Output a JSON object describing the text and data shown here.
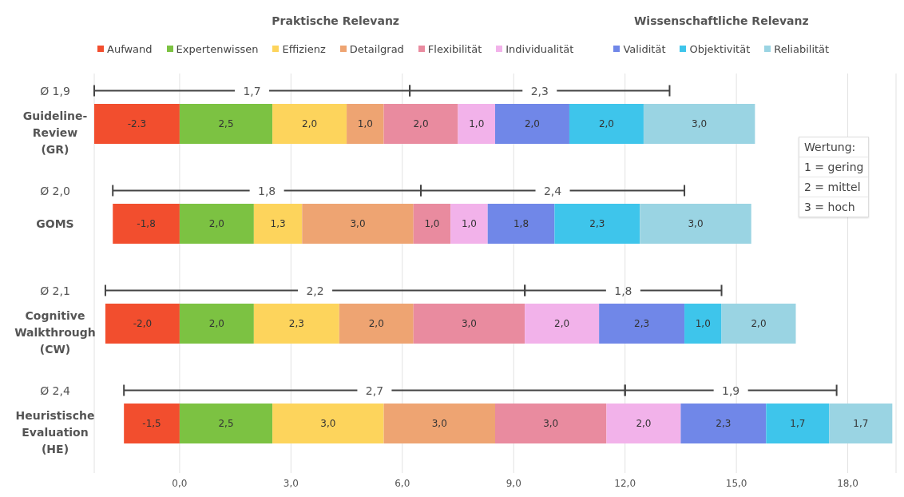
{
  "chart_data": {
    "type": "bar",
    "orientation": "horizontal",
    "stacked": true,
    "categories": [
      "Guideline-Review (GR)",
      "GOMS",
      "Cognitive Walkthrough (CW)",
      "Heuristische Evaluation (HE)"
    ],
    "series": [
      {
        "name": "Aufwand",
        "color": "#f24e2e",
        "values": [
          -2.3,
          -1.8,
          -2.0,
          -1.5
        ],
        "value_labels": [
          "-2.3",
          "-1,8",
          "-2,0",
          "-1,5"
        ]
      },
      {
        "name": "Expertenwissen",
        "color": "#7cc242",
        "values": [
          2.5,
          2.0,
          2.0,
          2.5
        ],
        "value_labels": [
          "2,5",
          "2,0",
          "2,0",
          "2,5"
        ]
      },
      {
        "name": "Effizienz",
        "color": "#fdd45c",
        "values": [
          2.0,
          1.3,
          2.3,
          3.0
        ],
        "value_labels": [
          "2,0",
          "1,3",
          "2,3",
          "3,0"
        ]
      },
      {
        "name": "Detailgrad",
        "color": "#eea472",
        "values": [
          1.0,
          3.0,
          2.0,
          3.0
        ],
        "value_labels": [
          "1,0",
          "3,0",
          "2,0",
          "3,0"
        ]
      },
      {
        "name": "Flexibilität",
        "color": "#e98b9f",
        "values": [
          2.0,
          1.0,
          3.0,
          3.0
        ],
        "value_labels": [
          "2,0",
          "1,0",
          "3,0",
          "3,0"
        ]
      },
      {
        "name": "Individualität",
        "color": "#f2b2ea",
        "values": [
          1.0,
          1.0,
          2.0,
          2.0
        ],
        "value_labels": [
          "1,0",
          "1,0",
          "2,0",
          "2,0"
        ]
      },
      {
        "name": "Validität",
        "color": "#7087e8",
        "values": [
          2.0,
          1.8,
          2.3,
          2.3
        ],
        "value_labels": [
          "2,0",
          "1,8",
          "2,3",
          "2,3"
        ]
      },
      {
        "name": "Objektivität",
        "color": "#3ec5eb",
        "values": [
          2.0,
          2.3,
          1.0,
          1.7
        ],
        "value_labels": [
          "2,0",
          "2,3",
          "1,0",
          "1,7"
        ]
      },
      {
        "name": "Reliabilität",
        "color": "#9ad4e3",
        "values": [
          3.0,
          3.0,
          2.0,
          1.7
        ],
        "value_labels": [
          "3,0",
          "3,0",
          "2,0",
          "1,7"
        ]
      }
    ],
    "xlim": [
      -2.3,
      19.3
    ],
    "xticks": [
      {
        "value": 0,
        "label": "0,0"
      },
      {
        "value": 3,
        "label": "3,0"
      },
      {
        "value": 6,
        "label": "6,0"
      },
      {
        "value": 9,
        "label": "9,0"
      },
      {
        "value": 12,
        "label": "12,0"
      },
      {
        "value": 15,
        "label": "15,0"
      },
      {
        "value": 18,
        "label": "18,0"
      }
    ],
    "grid": "x",
    "legend": "top",
    "annotations": [
      "Praktische Relevanz",
      "Wissenschaftliche Relevanz",
      "Ø 1,9",
      "1,7",
      "2,3",
      "Ø 2,0",
      "1,8",
      "2,4",
      "Ø 2,1",
      "2,2",
      "1,8",
      "Ø 2,4",
      "2,7",
      "1,9",
      "Wertung:",
      "1 = gering",
      "2 = mittel",
      "3 = hoch"
    ]
  }
}
